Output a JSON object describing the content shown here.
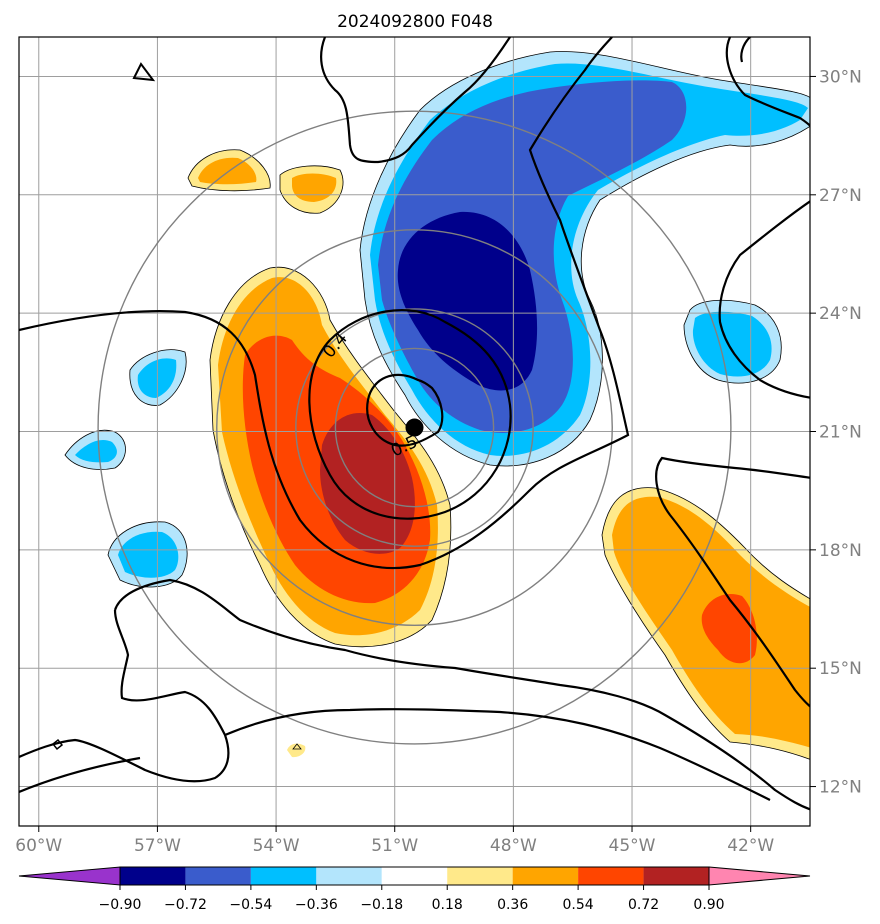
{
  "title": "2024092800 F048",
  "map": {
    "lon_range": [
      -60.5,
      -40.5
    ],
    "lat_range": [
      11,
      31
    ],
    "lon_ticks": [
      {
        "value": -60,
        "label": "60°W"
      },
      {
        "value": -57,
        "label": "57°W"
      },
      {
        "value": -54,
        "label": "54°W"
      },
      {
        "value": -51,
        "label": "51°W"
      },
      {
        "value": -48,
        "label": "48°W"
      },
      {
        "value": -45,
        "label": "45°W"
      },
      {
        "value": -42,
        "label": "42°W"
      }
    ],
    "lat_ticks": [
      {
        "value": 30,
        "label": "30°N"
      },
      {
        "value": 27,
        "label": "27°N"
      },
      {
        "value": 24,
        "label": "24°N"
      },
      {
        "value": 21,
        "label": "21°N"
      },
      {
        "value": 18,
        "label": "18°N"
      },
      {
        "value": 15,
        "label": "15°N"
      },
      {
        "value": 12,
        "label": "12°N"
      }
    ],
    "grid": true,
    "storm_center": {
      "lon": -50.5,
      "lat": 21.1
    },
    "range_rings_deg": [
      2,
      3,
      5,
      8
    ],
    "contour_labels": [
      {
        "text": "0.4",
        "lon": -52.4,
        "lat": 23.1,
        "rotate": -50
      },
      {
        "text": "0.5",
        "lon": -50.7,
        "lat": 20.5,
        "rotate": -25
      }
    ]
  },
  "colorbar": {
    "ticks": [
      "−0.90",
      "−0.72",
      "−0.54",
      "−0.36",
      "−0.18",
      "0.18",
      "0.36",
      "0.54",
      "0.72",
      "0.90"
    ],
    "colors": {
      "under": "#9933cc",
      "n090": "#00008b",
      "n072": "#3a5ccc",
      "n054": "#00bfff",
      "n036": "#b3e5fc",
      "n018": "#ffffff",
      "p018": "#ffe98a",
      "p036": "#ffa500",
      "p054": "#ff4500",
      "p072": "#b22222",
      "over": "#ff85b0"
    }
  }
}
